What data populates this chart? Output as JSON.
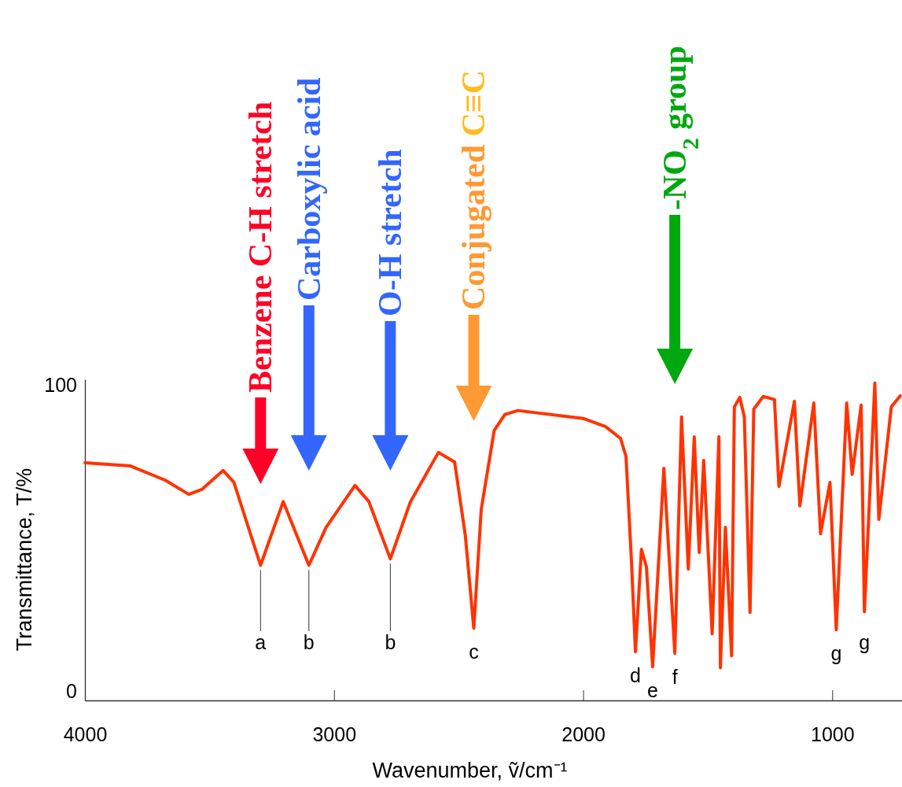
{
  "chart_data": {
    "type": "line",
    "xlabel": "Wavenumber, ṽ/cm⁻¹",
    "ylabel": "Transmittance, T/%",
    "xlim": [
      4000,
      720
    ],
    "xticks": [
      4000,
      3000,
      2000,
      1000
    ],
    "ylim": [
      -3,
      102
    ],
    "yticks": [
      0,
      100
    ],
    "x": [
      4000,
      3819,
      3677,
      3583,
      3531,
      3445,
      3402,
      3295,
      3204,
      3101,
      3032,
      2916,
      2860,
      2774,
      2693,
      2581,
      2516,
      2473,
      2439,
      2409,
      2357,
      2314,
      2262,
      2000,
      1911,
      1850,
      1828,
      1806,
      1790,
      1766,
      1746,
      1721,
      1676,
      1632,
      1605,
      1578,
      1554,
      1534,
      1516,
      1482,
      1455,
      1449,
      1429,
      1404,
      1393,
      1371,
      1353,
      1330,
      1315,
      1277,
      1232,
      1214,
      1152,
      1130,
      1074,
      1047,
      1009,
      984,
      942,
      920,
      884,
      871,
      829,
      813,
      763,
      727
    ],
    "series": [
      {
        "color": "#ff3300",
        "values": [
          74.7,
          73.7,
          69,
          64.4,
          66,
          72.2,
          68.3,
          41.2,
          62,
          41.2,
          53.6,
          67.3,
          62,
          43.3,
          62,
          78.1,
          75,
          51,
          20.6,
          59.5,
          85.3,
          90.5,
          91.8,
          89.2,
          86.6,
          82.7,
          76.8,
          42.5,
          12.9,
          46.4,
          40.7,
          8,
          72.9,
          12.4,
          89.7,
          40,
          83.2,
          45.4,
          75.5,
          18.8,
          83.2,
          7.7,
          53.6,
          11.6,
          93,
          96.1,
          89.7,
          25.8,
          92.3,
          96.4,
          95.4,
          67,
          94.8,
          60.6,
          94.3,
          51.5,
          68.3,
          20.1,
          94.3,
          70.9,
          93.6,
          26,
          100.8,
          56.2,
          93,
          96.6
        ]
      }
    ],
    "annotations": [
      "Benzene C-H stretch",
      "Carboxylic acid",
      "O-H stretch",
      "Conjugated C≡C",
      "-NO$_{2}$ group",
      {
        "text": "a",
        "x": 3295,
        "y": 41.2
      },
      {
        "text": "b",
        "x": 3101,
        "y": 41.2
      },
      {
        "text": "b",
        "x": 2774,
        "y": 43.3
      },
      {
        "text": "c",
        "x": 2439,
        "y": 20.6
      },
      {
        "text": "d",
        "x": 1790,
        "y": 12.9
      },
      {
        "text": "e",
        "x": 1721,
        "y": 8
      },
      {
        "text": "f",
        "x": 1632,
        "y": 12.4
      },
      {
        "text": "g",
        "x": 984,
        "y": 20.1
      },
      {
        "text": "g",
        "x": 871,
        "y": 26
      }
    ],
    "marker": "none",
    "line_style": "solid"
  }
}
